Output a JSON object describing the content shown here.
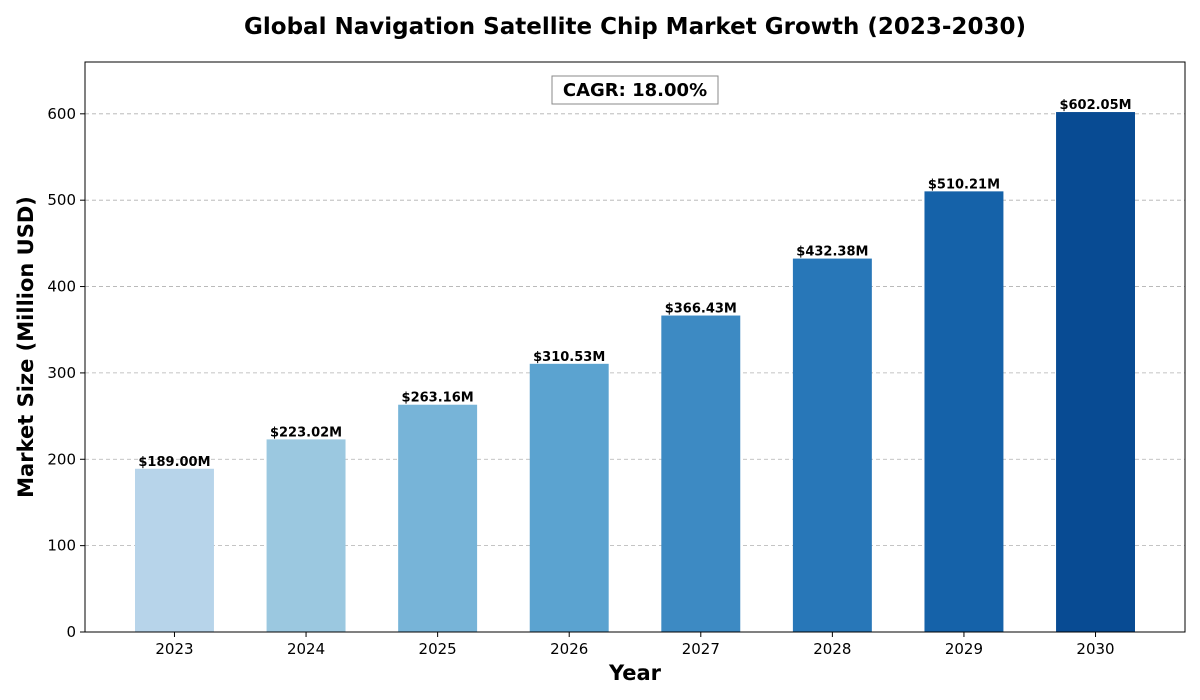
{
  "chart_data": {
    "type": "bar",
    "title": "Global Navigation Satellite Chip Market Growth (2023-2030)",
    "xlabel": "Year",
    "ylabel": "Market Size (Million USD)",
    "categories": [
      "2023",
      "2024",
      "2025",
      "2026",
      "2027",
      "2028",
      "2029",
      "2030"
    ],
    "values": [
      189.0,
      223.02,
      263.16,
      310.53,
      366.43,
      432.38,
      510.21,
      602.05
    ],
    "data_labels": [
      "$189.00M",
      "$223.02M",
      "$263.16M",
      "$310.53M",
      "$366.43M",
      "$432.38M",
      "$510.21M",
      "$602.05M"
    ],
    "colors": [
      "#b7d4ea",
      "#9bc8e0",
      "#77b4d8",
      "#5ba3d0",
      "#3d8ac3",
      "#2877b8",
      "#1562a9",
      "#084b93"
    ],
    "ylim": [
      0,
      660
    ],
    "yticks": [
      0,
      100,
      200,
      300,
      400,
      500,
      600
    ],
    "grid": "horizontal dashed",
    "annotation": "CAGR: 18.00%"
  }
}
